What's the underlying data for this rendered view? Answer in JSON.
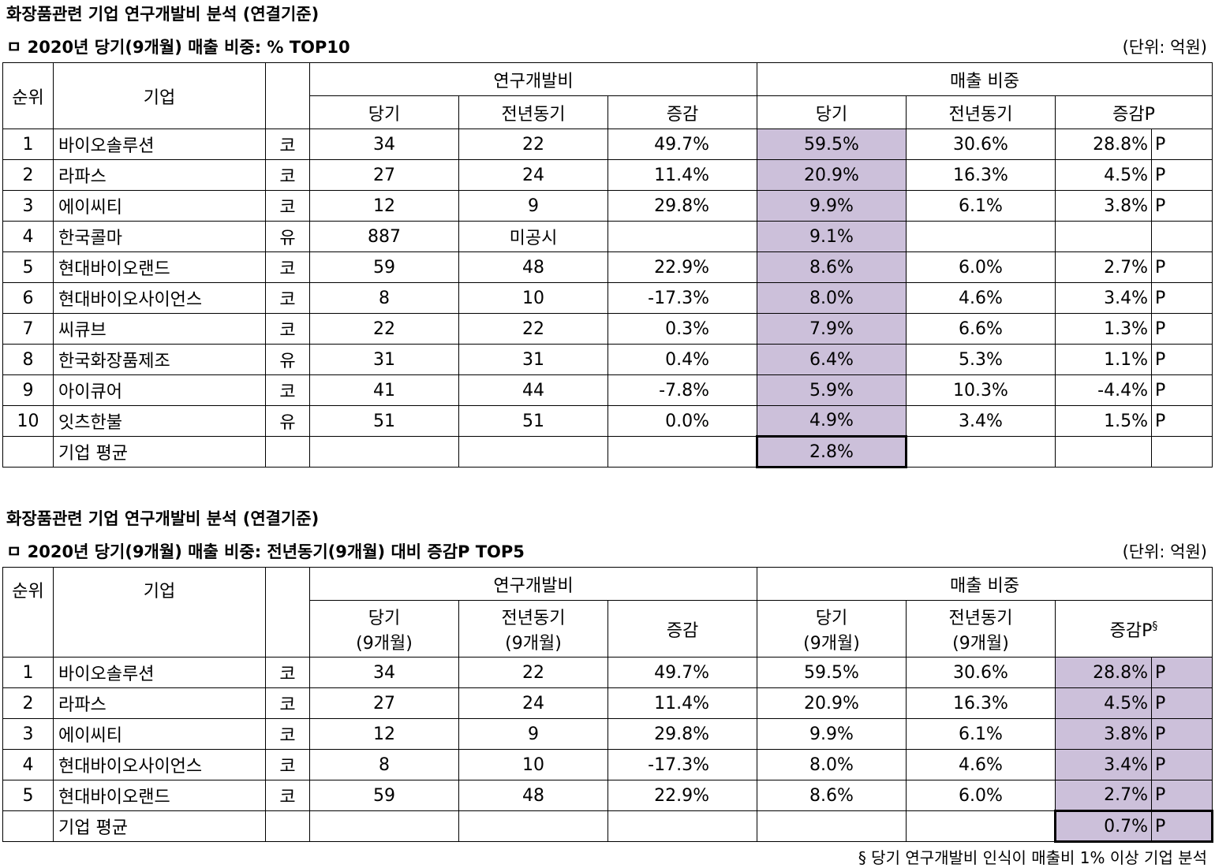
{
  "t1": {
    "title": "화장품관련 기업 연구개발비 분석 (연결기준)",
    "subtitle": "ㅁ 2020년 당기(9개월) 매출 비중: % TOP10",
    "unit": "(단위: 억원)",
    "hdr": {
      "rank": "순위",
      "company": "기업",
      "rd": "연구개발비",
      "ratio": "매출 비중",
      "cur": "당기",
      "prev": "전년동기",
      "chg": "증감",
      "chgp": "증감P"
    },
    "rows": [
      {
        "rank": "1",
        "name": "바이오솔루션",
        "mkt": "코",
        "rc": "34",
        "rp": "22",
        "rg": "49.7%",
        "sc": "59.5%",
        "sp": "30.6%",
        "sg": "28.8%",
        "p": "P"
      },
      {
        "rank": "2",
        "name": "라파스",
        "mkt": "코",
        "rc": "27",
        "rp": "24",
        "rg": "11.4%",
        "sc": "20.9%",
        "sp": "16.3%",
        "sg": "4.5%",
        "p": "P"
      },
      {
        "rank": "3",
        "name": "에이씨티",
        "mkt": "코",
        "rc": "12",
        "rp": "9",
        "rg": "29.8%",
        "sc": "9.9%",
        "sp": "6.1%",
        "sg": "3.8%",
        "p": "P"
      },
      {
        "rank": "4",
        "name": "한국콜마",
        "mkt": "유",
        "rc": "887",
        "rp": "미공시",
        "rg": "",
        "sc": "9.1%",
        "sp": "",
        "sg": "",
        "p": ""
      },
      {
        "rank": "5",
        "name": "현대바이오랜드",
        "mkt": "코",
        "rc": "59",
        "rp": "48",
        "rg": "22.9%",
        "sc": "8.6%",
        "sp": "6.0%",
        "sg": "2.7%",
        "p": "P"
      },
      {
        "rank": "6",
        "name": "현대바이오사이언스",
        "mkt": "코",
        "rc": "8",
        "rp": "10",
        "rg": "-17.3%",
        "sc": "8.0%",
        "sp": "4.6%",
        "sg": "3.4%",
        "p": "P"
      },
      {
        "rank": "7",
        "name": "씨큐브",
        "mkt": "코",
        "rc": "22",
        "rp": "22",
        "rg": "0.3%",
        "sc": "7.9%",
        "sp": "6.6%",
        "sg": "1.3%",
        "p": "P"
      },
      {
        "rank": "8",
        "name": "한국화장품제조",
        "mkt": "유",
        "rc": "31",
        "rp": "31",
        "rg": "0.4%",
        "sc": "6.4%",
        "sp": "5.3%",
        "sg": "1.1%",
        "p": "P"
      },
      {
        "rank": "9",
        "name": "아이큐어",
        "mkt": "코",
        "rc": "41",
        "rp": "44",
        "rg": "-7.8%",
        "sc": "5.9%",
        "sp": "10.3%",
        "sg": "-4.4%",
        "p": "P"
      },
      {
        "rank": "10",
        "name": "잇츠한불",
        "mkt": "유",
        "rc": "51",
        "rp": "51",
        "rg": "0.0%",
        "sc": "4.9%",
        "sp": "3.4%",
        "sg": "1.5%",
        "p": "P"
      }
    ],
    "avg": {
      "label": "기업 평균",
      "sc": "2.8%"
    }
  },
  "t2": {
    "title": "화장품관련 기업 연구개발비 분석 (연결기준)",
    "subtitle": "ㅁ 2020년 당기(9개월) 매출 비중:  전년동기(9개월) 대비 증감P TOP5",
    "unit": "(단위: 억원)",
    "hdr": {
      "rank": "순위",
      "company": "기업",
      "rd": "연구개발비",
      "ratio": "매출 비중",
      "cur": "당기",
      "prev": "전년동기",
      "period": "(9개월)",
      "chg": "증감",
      "chgp": "증감P",
      "mark": "§"
    },
    "rows": [
      {
        "rank": "1",
        "name": "바이오솔루션",
        "mkt": "코",
        "rc": "34",
        "rp": "22",
        "rg": "49.7%",
        "sc": "59.5%",
        "sp": "30.6%",
        "sg": "28.8%",
        "p": "P"
      },
      {
        "rank": "2",
        "name": "라파스",
        "mkt": "코",
        "rc": "27",
        "rp": "24",
        "rg": "11.4%",
        "sc": "20.9%",
        "sp": "16.3%",
        "sg": "4.5%",
        "p": "P"
      },
      {
        "rank": "3",
        "name": "에이씨티",
        "mkt": "코",
        "rc": "12",
        "rp": "9",
        "rg": "29.8%",
        "sc": "9.9%",
        "sp": "6.1%",
        "sg": "3.8%",
        "p": "P"
      },
      {
        "rank": "4",
        "name": "현대바이오사이언스",
        "mkt": "코",
        "rc": "8",
        "rp": "10",
        "rg": "-17.3%",
        "sc": "8.0%",
        "sp": "4.6%",
        "sg": "3.4%",
        "p": "P"
      },
      {
        "rank": "5",
        "name": "현대바이오랜드",
        "mkt": "코",
        "rc": "59",
        "rp": "48",
        "rg": "22.9%",
        "sc": "8.6%",
        "sp": "6.0%",
        "sg": "2.7%",
        "p": "P"
      }
    ],
    "avg": {
      "label": "기업 평균",
      "sg": "0.7%",
      "p": "P"
    },
    "footnote": "§ 당기 연구개발비 인식이 매출비 1% 이상 기업 분석"
  }
}
